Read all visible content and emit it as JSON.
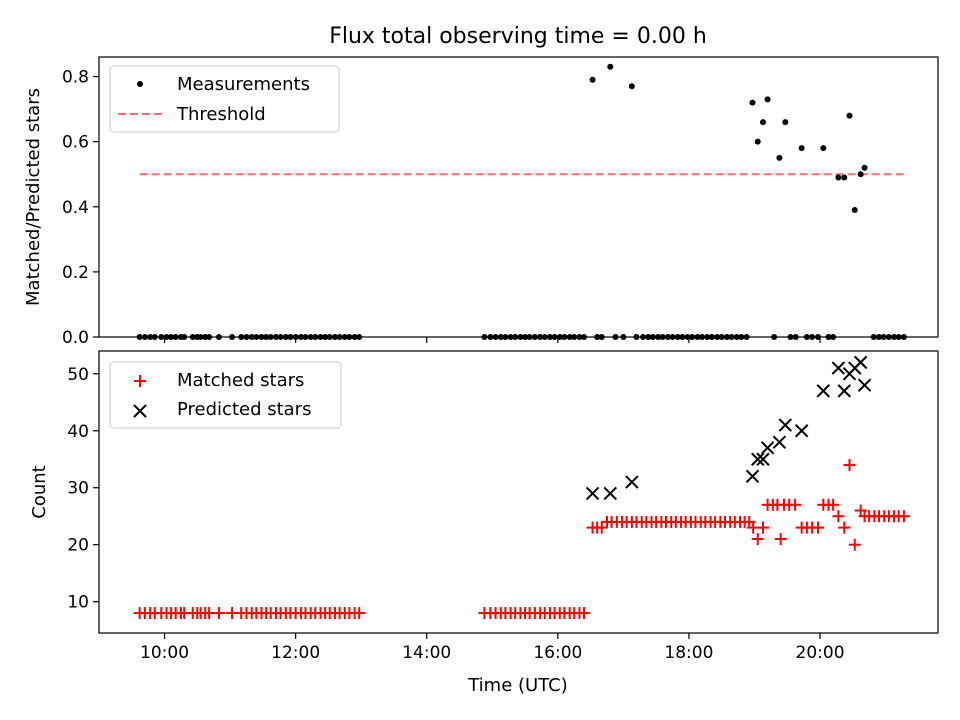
{
  "title": "Flux total observing time = 0.00 h",
  "colors": {
    "measurement": "#000000",
    "threshold": "#ff6b6b",
    "matched": "#ff0000",
    "predicted": "#000000"
  },
  "chart_data": [
    {
      "type": "scatter",
      "ylabel": "Matched/Predicted stars",
      "ylim": [
        0,
        0.86
      ],
      "yticks": [
        0.0,
        0.2,
        0.4,
        0.6,
        0.8
      ],
      "ytick_labels": [
        "0.0",
        "0.2",
        "0.4",
        "0.6",
        "0.8"
      ],
      "xlim": [
        9.0,
        21.8
      ],
      "legend": {
        "position": "top-left",
        "entries": [
          "Measurements",
          "Threshold"
        ]
      },
      "series": [
        {
          "name": "Measurements",
          "marker": "dot",
          "x": [
            9.62,
            9.7,
            9.78,
            9.85,
            9.95,
            10.03,
            10.1,
            10.17,
            10.25,
            10.3,
            10.43,
            10.5,
            10.55,
            10.62,
            10.68,
            10.83,
            11.03,
            11.17,
            11.25,
            11.33,
            11.4,
            11.48,
            11.55,
            11.62,
            11.7,
            11.77,
            11.85,
            11.92,
            12.0,
            12.08,
            12.15,
            12.23,
            12.3,
            12.38,
            12.45,
            12.52,
            12.6,
            12.67,
            12.75,
            12.82,
            12.9,
            12.97,
            14.88,
            14.97,
            15.05,
            15.13,
            15.2,
            15.28,
            15.35,
            15.43,
            15.5,
            15.57,
            15.65,
            15.73,
            15.8,
            15.88,
            15.95,
            16.03,
            16.1,
            16.18,
            16.25,
            16.33,
            16.4,
            16.53,
            16.6,
            16.67,
            16.8,
            16.88,
            17.0,
            17.13,
            17.2,
            17.3,
            17.38,
            17.45,
            17.53,
            17.6,
            17.68,
            17.75,
            17.83,
            17.9,
            17.98,
            18.05,
            18.13,
            18.2,
            18.28,
            18.35,
            18.43,
            18.5,
            18.58,
            18.65,
            18.73,
            18.8,
            18.88,
            18.97,
            19.05,
            19.13,
            19.2,
            19.3,
            19.38,
            19.47,
            19.55,
            19.63,
            19.72,
            19.8,
            19.88,
            19.97,
            20.05,
            20.13,
            20.2,
            20.28,
            20.37,
            20.45,
            20.53,
            20.62,
            20.68,
            20.82,
            20.9,
            20.97,
            21.05,
            21.13,
            21.2,
            21.28
          ],
          "y": [
            0,
            0,
            0,
            0,
            0,
            0,
            0,
            0,
            0,
            0,
            0,
            0,
            0,
            0,
            0,
            0,
            0,
            0,
            0,
            0,
            0,
            0,
            0,
            0,
            0,
            0,
            0,
            0,
            0,
            0,
            0,
            0,
            0,
            0,
            0,
            0,
            0,
            0,
            0,
            0,
            0,
            0,
            0,
            0,
            0,
            0,
            0,
            0,
            0,
            0,
            0,
            0,
            0,
            0,
            0,
            0,
            0,
            0,
            0,
            0,
            0,
            0,
            0,
            0.79,
            0,
            0,
            0.83,
            0,
            0,
            0.77,
            0,
            0,
            0,
            0,
            0,
            0,
            0,
            0,
            0,
            0,
            0,
            0,
            0,
            0,
            0,
            0,
            0,
            0,
            0,
            0,
            0,
            0,
            0,
            0.72,
            0.6,
            0.66,
            0.73,
            0,
            0.55,
            0.66,
            0,
            0,
            0.58,
            0,
            0,
            0,
            0.58,
            0,
            0,
            0.49,
            0.49,
            0.68,
            0.39,
            0.5,
            0.52,
            0,
            0,
            0,
            0,
            0,
            0,
            0
          ]
        },
        {
          "name": "Threshold",
          "marker": "dashed-line",
          "x": [
            9.62,
            21.28
          ],
          "y": [
            0.5,
            0.5
          ]
        }
      ]
    },
    {
      "type": "scatter",
      "ylabel": "Count",
      "xlabel": "Time (UTC)",
      "ylim": [
        4.5,
        54
      ],
      "yticks": [
        10,
        20,
        30,
        40,
        50
      ],
      "ytick_labels": [
        "10",
        "20",
        "30",
        "40",
        "50"
      ],
      "xlim": [
        9.0,
        21.8
      ],
      "xticks": [
        10,
        12,
        14,
        16,
        18,
        20
      ],
      "xtick_labels": [
        "10:00",
        "12:00",
        "14:00",
        "16:00",
        "18:00",
        "20:00"
      ],
      "legend": {
        "position": "top-left",
        "entries": [
          "Matched stars",
          "Predicted stars"
        ]
      },
      "series": [
        {
          "name": "Matched stars",
          "marker": "plus",
          "x": [
            9.62,
            9.7,
            9.78,
            9.85,
            9.95,
            10.03,
            10.1,
            10.17,
            10.25,
            10.3,
            10.43,
            10.5,
            10.55,
            10.62,
            10.68,
            10.83,
            11.03,
            11.17,
            11.25,
            11.33,
            11.4,
            11.48,
            11.55,
            11.62,
            11.7,
            11.77,
            11.85,
            11.92,
            12.0,
            12.08,
            12.15,
            12.23,
            12.3,
            12.38,
            12.45,
            12.52,
            12.6,
            12.67,
            12.75,
            12.82,
            12.9,
            12.97,
            14.88,
            14.97,
            15.05,
            15.13,
            15.2,
            15.28,
            15.35,
            15.43,
            15.5,
            15.57,
            15.65,
            15.73,
            15.8,
            15.88,
            15.95,
            16.03,
            16.1,
            16.18,
            16.25,
            16.33,
            16.4,
            16.53,
            16.6,
            16.67,
            16.75,
            16.82,
            16.9,
            16.98,
            17.05,
            17.13,
            17.2,
            17.28,
            17.35,
            17.43,
            17.5,
            17.58,
            17.65,
            17.73,
            17.8,
            17.88,
            17.95,
            18.03,
            18.1,
            18.18,
            18.25,
            18.33,
            18.4,
            18.48,
            18.55,
            18.63,
            18.7,
            18.78,
            18.85,
            18.92,
            18.98,
            19.05,
            19.13,
            19.2,
            19.28,
            19.35,
            19.4,
            19.45,
            19.53,
            19.62,
            19.72,
            19.8,
            19.88,
            19.97,
            20.05,
            20.13,
            20.2,
            20.28,
            20.37,
            20.45,
            20.53,
            20.62,
            20.68,
            20.75,
            20.83,
            20.9,
            20.98,
            21.05,
            21.13,
            21.2,
            21.28
          ],
          "y": [
            8,
            8,
            8,
            8,
            8,
            8,
            8,
            8,
            8,
            8,
            8,
            8,
            8,
            8,
            8,
            8,
            8,
            8,
            8,
            8,
            8,
            8,
            8,
            8,
            8,
            8,
            8,
            8,
            8,
            8,
            8,
            8,
            8,
            8,
            8,
            8,
            8,
            8,
            8,
            8,
            8,
            8,
            8,
            8,
            8,
            8,
            8,
            8,
            8,
            8,
            8,
            8,
            8,
            8,
            8,
            8,
            8,
            8,
            8,
            8,
            8,
            8,
            8,
            23,
            23,
            23,
            24,
            24,
            24,
            24,
            24,
            24,
            24,
            24,
            24,
            24,
            24,
            24,
            24,
            24,
            24,
            24,
            24,
            24,
            24,
            24,
            24,
            24,
            24,
            24,
            24,
            24,
            24,
            24,
            24,
            24,
            23,
            21,
            23,
            27,
            27,
            27,
            21,
            27,
            27,
            27,
            23,
            23,
            23,
            23,
            27,
            27,
            27,
            25,
            23,
            34,
            20,
            26,
            25,
            25,
            25,
            25,
            25,
            25,
            25,
            25,
            25
          ]
        },
        {
          "name": "Predicted stars",
          "marker": "x",
          "x": [
            16.53,
            16.8,
            17.13,
            18.97,
            19.05,
            19.13,
            19.2,
            19.38,
            19.47,
            19.72,
            20.05,
            20.28,
            20.37,
            20.45,
            20.53,
            20.62,
            20.68
          ],
          "y": [
            29,
            29,
            31,
            32,
            35,
            35,
            37,
            38,
            41,
            40,
            47,
            51,
            47,
            50,
            51,
            52,
            48
          ]
        }
      ]
    }
  ]
}
